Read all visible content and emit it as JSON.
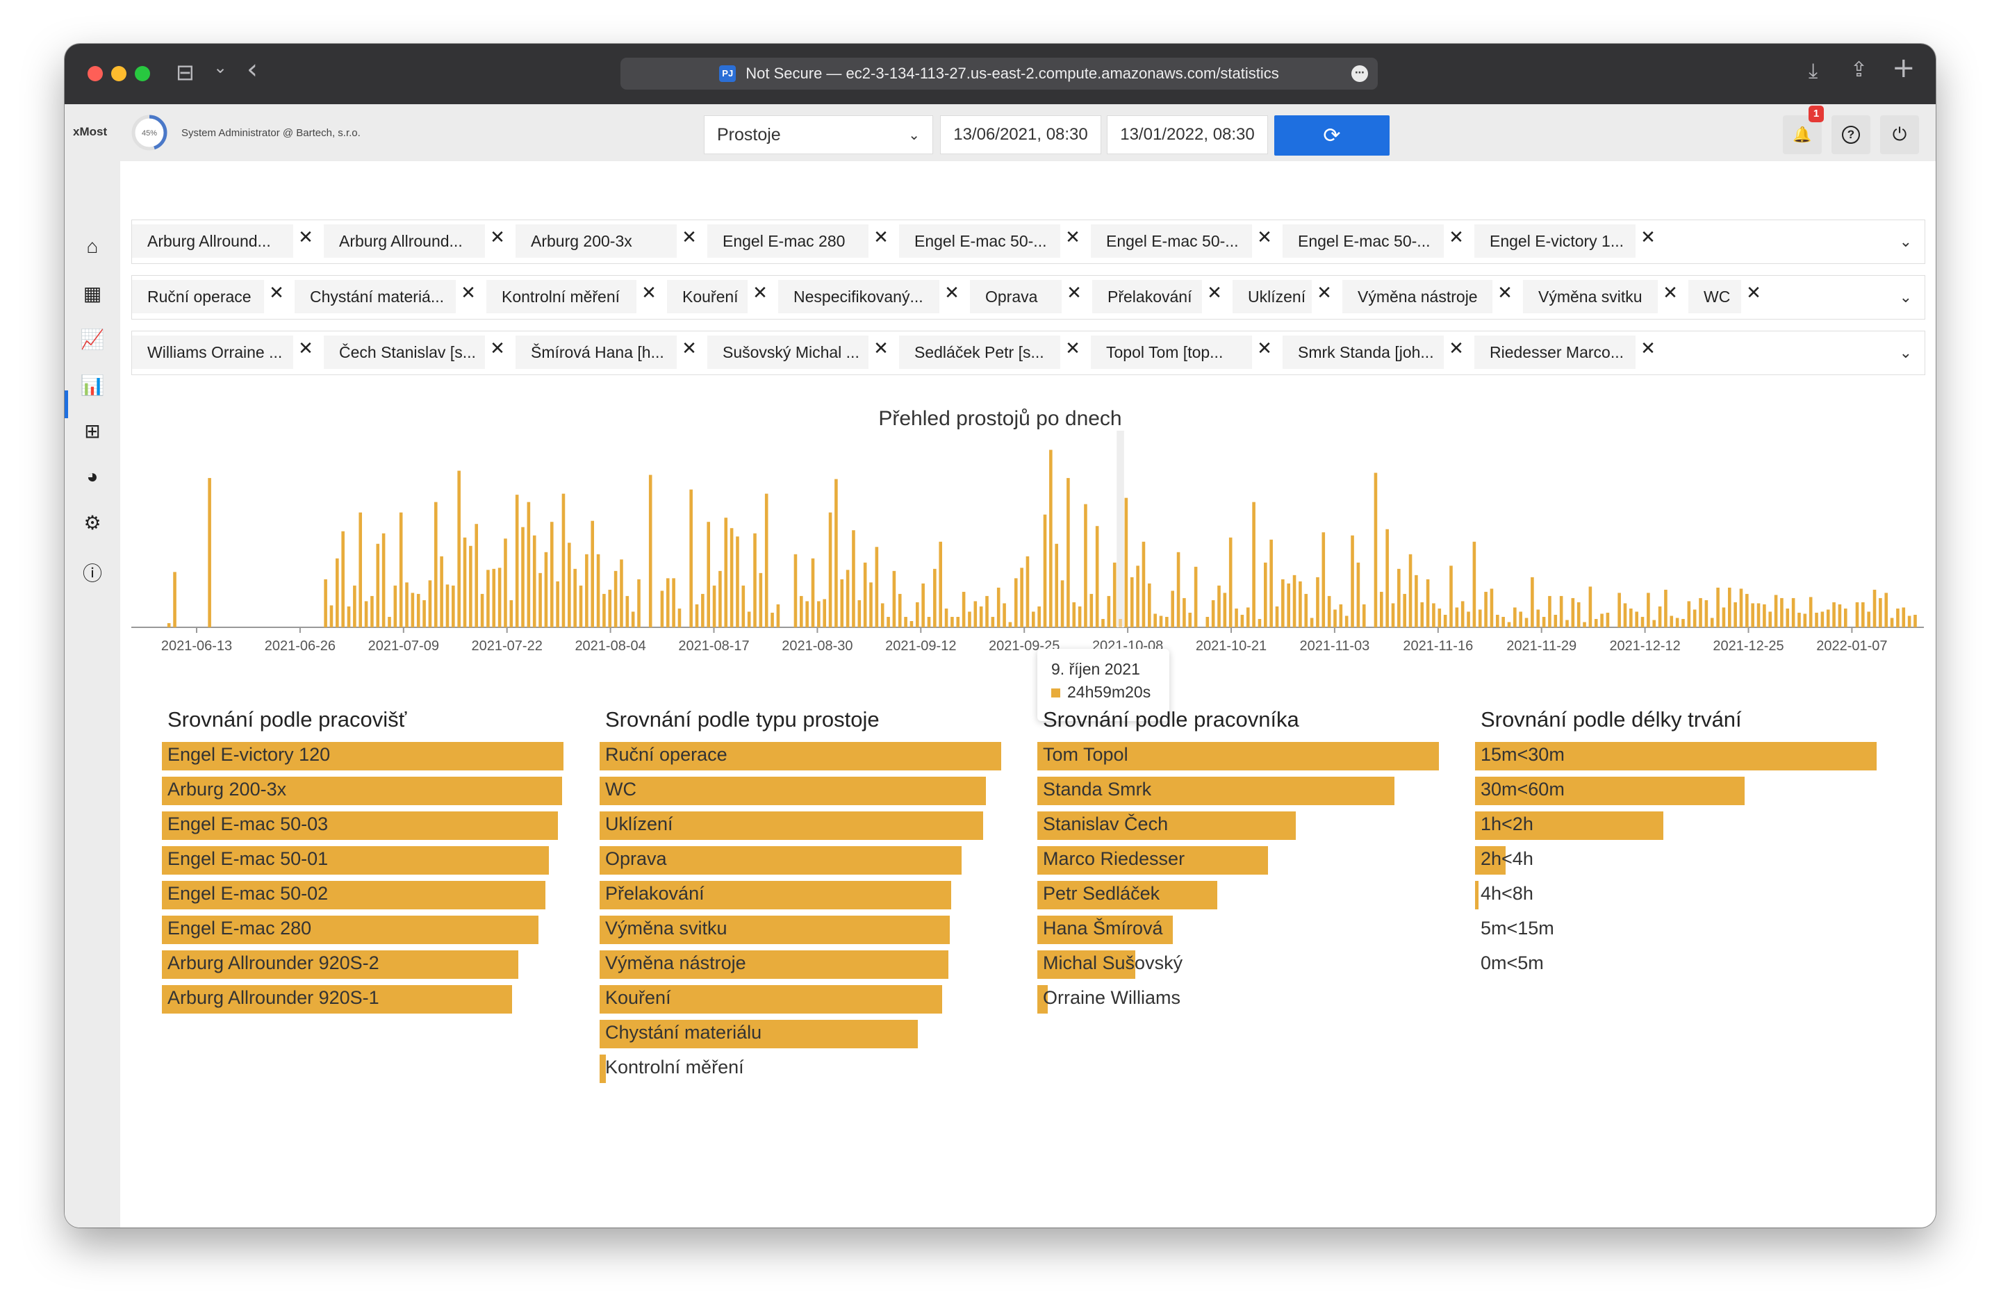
{
  "browser": {
    "url_text": "Not Secure — ec2-3-134-113-27.us-east-2.compute.amazonaws.com/statistics",
    "favicon_text": "PJ",
    "more_icon": "⋯",
    "back_icon": "‹",
    "sidebar_icon": "⊟",
    "chevron_icon": "⌄",
    "download_icon": "⤓",
    "share_icon": "⇪",
    "newtab_icon": "+"
  },
  "header": {
    "brand": "xMost",
    "progress_label": "45%",
    "progress_value": 45,
    "user": "System Administrator @ Bartech, s.r.o.",
    "select_value": "Prostoje",
    "date_from": "13/06/2021, 08:30",
    "date_to": "13/01/2022, 08:30",
    "refresh_icon": "⟳",
    "bell_icon": "🔔",
    "notification_count": "1",
    "help_icon": "?",
    "power_icon": "⏻",
    "caret_icon": "⌄"
  },
  "nav": [
    {
      "name": "home-icon",
      "glyph": "⌂"
    },
    {
      "name": "dashboard-icon",
      "glyph": "▦"
    },
    {
      "name": "line-chart-icon",
      "glyph": "📈"
    },
    {
      "name": "bar-chart-icon",
      "glyph": "📊"
    },
    {
      "name": "table-icon",
      "glyph": "⊞"
    },
    {
      "name": "pie-chart-icon",
      "glyph": "◕"
    },
    {
      "name": "settings-icon",
      "glyph": "⚙"
    },
    {
      "name": "info-icon",
      "glyph": "ⓘ"
    }
  ],
  "filters": {
    "workplaces": [
      "Arburg Allround...",
      "Arburg Allround...",
      "Arburg 200-3x",
      "Engel E-mac 280",
      "Engel E-mac 50-...",
      "Engel E-mac 50-...",
      "Engel E-mac 50-...",
      "Engel E-victory 1..."
    ],
    "downtime_types": [
      "Ruční operace",
      "Chystání materiá...",
      "Kontrolní měření",
      "Kouření",
      "Nespecifikovaný...",
      "Oprava",
      "Přelakování",
      "Uklízení",
      "Výměna nástroje",
      "Výměna svitku",
      "WC"
    ],
    "workers": [
      "Williams Orraine ...",
      "Čech Stanislav [s...",
      "Šmírová Hana [h...",
      "Sušovský Michal ...",
      "Sedláček Petr [s...",
      "Topol Tom [top...",
      "Smrk Standa [joh...",
      "Riedesser Marco..."
    ],
    "remove_icon": "✕",
    "caret_icon": "⌄"
  },
  "chart_data": {
    "type": "bar",
    "title": "Přehled prostojů po dnech",
    "color": "#e8ac3c",
    "x_ticks": [
      "2021-06-13",
      "2021-06-26",
      "2021-07-09",
      "2021-07-22",
      "2021-08-04",
      "2021-08-17",
      "2021-08-30",
      "2021-09-12",
      "2021-09-25",
      "2021-10-08",
      "2021-10-21",
      "2021-11-03",
      "2021-11-16",
      "2021-11-29",
      "2021-12-12",
      "2021-12-25",
      "2022-01-07"
    ],
    "values": [
      0.4,
      5.3,
      0,
      0,
      0,
      0,
      0,
      14.3,
      0,
      0,
      0,
      0,
      0,
      0,
      0,
      0,
      0,
      0,
      0,
      0,
      0,
      0,
      0,
      0,
      0,
      0,
      0,
      4.6,
      2.1,
      6.6,
      9.2,
      2.0,
      4.0,
      11.0,
      2.5,
      3.0,
      8.0,
      9.0,
      1.0,
      4.0,
      11.0,
      4.3,
      3.3,
      3.2,
      2.6,
      4.5,
      12.0,
      6.8,
      4.1,
      4.0,
      15.0,
      8.6,
      7.8,
      9.9,
      3.2,
      5.5,
      5.6,
      5.7,
      8.5,
      2.6,
      12.7,
      9.6,
      12.0,
      8.8,
      5.2,
      7.2,
      10.1,
      4.4,
      12.8,
      8.1,
      5.6,
      4.0,
      7.0,
      10.2,
      7.0,
      3.2,
      3.6,
      5.4,
      6.5,
      3.0,
      1.5,
      4.6,
      0,
      14.6,
      0,
      3.5,
      4.7,
      4.7,
      1.8,
      0,
      13.2,
      2.2,
      3.2,
      10.1,
      4.0,
      5.4,
      10.5,
      9.5,
      8.7,
      4.0,
      1.5,
      9.0,
      5.2,
      12.8,
      1.4,
      2.2,
      0,
      0,
      7.0,
      3.0,
      2.5,
      6.6,
      2.5,
      2.7,
      11.0,
      14.2,
      4.6,
      5.5,
      9.3,
      2.6,
      6.2,
      4.3,
      7.7,
      2.3,
      1.0,
      5.4,
      3.2,
      1.0,
      0.6,
      2.4,
      4.2,
      1.0,
      5.6,
      8.2,
      1.8,
      1.0,
      1.0,
      3.4,
      1.5,
      2.5,
      2.0,
      3.0,
      1.0,
      3.8,
      2.3,
      0.5,
      4.7,
      5.7,
      6.8,
      1.5,
      2.0,
      10.8,
      17.0,
      8.0,
      4.5,
      14.3,
      2.4,
      2.0,
      11.8,
      3.2,
      9.7,
      0.8,
      3.0,
      6.2,
      0.8,
      12.4,
      4.8,
      5.9,
      8.2,
      4.2,
      1.3,
      1.1,
      1.0,
      3.5,
      7.2,
      2.8,
      1.4,
      5.8,
      0,
      1.0,
      2.6,
      4.0,
      3.3,
      8.6,
      1.8,
      1.2,
      1.9,
      12.0,
      0.8,
      6.2,
      8.4,
      2.0,
      4.6,
      4.2,
      5.0,
      4.4,
      3.2,
      0.9,
      4.8,
      9.1,
      3.0,
      1.7,
      2.2,
      1.1,
      8.8,
      6.2,
      2.2,
      0,
      14.8,
      3.4,
      9.4,
      2.3,
      5.6,
      3.2,
      7.0,
      5.0,
      2.4,
      4.6,
      2.3,
      1.8,
      1.2,
      5.9,
      1.9,
      2.5,
      1.5,
      8.2,
      1.7,
      3.4,
      3.7,
      1.2,
      1.0,
      0.5,
      1.9,
      1.5,
      0.9,
      4.8,
      1.7,
      1.0,
      3.0,
      1.2,
      3.0,
      0.7,
      2.8,
      2.4,
      0.5,
      3.9,
      0.8,
      1.3,
      1.4,
      0,
      3.3,
      2.3,
      1.8,
      1.5,
      1.0,
      3.3,
      0.7,
      2.0,
      3.6,
      1.1,
      0.9,
      0.8,
      2.5,
      1.7,
      2.8,
      2.6,
      0.9,
      3.8,
      1.9,
      3.8,
      2.4,
      3.7,
      3.2,
      2.3,
      2.3,
      2.2,
      1.5,
      3.1,
      2.8,
      1.8,
      2.8,
      1.4,
      1.3,
      2.9,
      1.4,
      1.5,
      1.7,
      2.4,
      2.2,
      1.8,
      0,
      2.4,
      2.4,
      1.5,
      3.6,
      2.8,
      3.3,
      0.9,
      1.8,
      1.9,
      1.1,
      1.2,
      0
    ],
    "y_max": 17.5,
    "highlight_index": 164,
    "tooltip_date": "9. říjen 2021",
    "tooltip_value": "24h59m20s"
  },
  "panels": [
    {
      "title": "Srovnání podle pracovišť",
      "items": [
        {
          "label": "Engel E-victory 120",
          "value": 1.0
        },
        {
          "label": "Arburg 200-3x",
          "value": 0.997
        },
        {
          "label": "Engel E-mac 50-03",
          "value": 0.987
        },
        {
          "label": "Engel E-mac 50-01",
          "value": 0.963
        },
        {
          "label": "Engel E-mac 50-02",
          "value": 0.955
        },
        {
          "label": "Engel E-mac 280",
          "value": 0.937
        },
        {
          "label": "Arburg Allrounder 920S-2",
          "value": 0.888
        },
        {
          "label": "Arburg Allrounder 920S-1",
          "value": 0.872
        }
      ]
    },
    {
      "title": "Srovnání podle typu prostoje",
      "items": [
        {
          "label": "Ruční operace",
          "value": 1.0
        },
        {
          "label": "WC",
          "value": 0.962
        },
        {
          "label": "Uklízení",
          "value": 0.955
        },
        {
          "label": "Oprava",
          "value": 0.901
        },
        {
          "label": "Přelakování",
          "value": 0.875
        },
        {
          "label": "Výměna svitku",
          "value": 0.872
        },
        {
          "label": "Výměna nástroje",
          "value": 0.869
        },
        {
          "label": "Kouření",
          "value": 0.853
        },
        {
          "label": "Chystání materiálu",
          "value": 0.792
        },
        {
          "label": "Kontrolní měření",
          "value": 0.016
        }
      ]
    },
    {
      "title": "Srovnání podle pracovníka",
      "items": [
        {
          "label": "Tom Topol",
          "value": 1.0
        },
        {
          "label": "Standa Smrk",
          "value": 0.89
        },
        {
          "label": "Stanislav Čech",
          "value": 0.643
        },
        {
          "label": "Marco Riedesser",
          "value": 0.575
        },
        {
          "label": "Petr  Sedláček",
          "value": 0.448
        },
        {
          "label": "Hana Šmírová",
          "value": 0.338
        },
        {
          "label": "Michal Sušovský",
          "value": 0.244
        },
        {
          "label": "Orraine Williams",
          "value": 0.026
        }
      ]
    },
    {
      "title": "Srovnání podle délky trvání",
      "items": [
        {
          "label": "15m<30m",
          "value": 1.0
        },
        {
          "label": "30m<60m",
          "value": 0.672
        },
        {
          "label": "1h<2h",
          "value": 0.468
        },
        {
          "label": "2h<4h",
          "value": 0.076
        },
        {
          "label": "4h<8h",
          "value": 0.006
        },
        {
          "label": "5m<15m",
          "value": 0
        },
        {
          "label": "0m<5m",
          "value": 0
        }
      ]
    }
  ]
}
